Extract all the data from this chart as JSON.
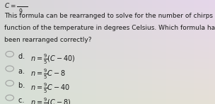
{
  "background_color": "#d8d8d8",
  "body_text_lines": [
    "This formula can be rearranged to solve for the number of chirps as a",
    "function of the temperature in degrees Celsius. Which formula has",
    "been rearranged correctly?"
  ],
  "options": [
    {
      "label": "d. ",
      "formula": "$n = \\frac{9}{5}(C - 40)$"
    },
    {
      "label": "a. ",
      "formula": "$n = \\frac{9}{5}C - 8$"
    },
    {
      "label": "b. ",
      "formula": "$n = \\frac{9}{5}C - 40$"
    },
    {
      "label": "c. ",
      "formula": "$n = \\frac{9}{5}(C - 8)$"
    }
  ],
  "top_formula": "$C = \\dfrac{\\quad}{9}$",
  "body_fontsize": 6.5,
  "option_fontsize": 7.0,
  "text_color": "#1a1a1a",
  "circle_edge_color": "#999999",
  "circle_linewidth": 0.7
}
